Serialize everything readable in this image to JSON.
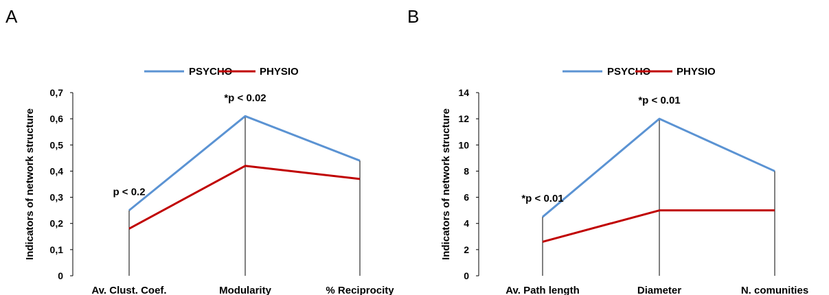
{
  "chart_data": [
    {
      "type": "line",
      "panel_label": "A",
      "categories": [
        "Av. Clust. Coef.",
        "Modularity",
        "% Reciprocity"
      ],
      "series": [
        {
          "name": "PSYCHO",
          "values": [
            0.25,
            0.61,
            0.44
          ],
          "color": "#5b93d3"
        },
        {
          "name": "PHYSIO",
          "values": [
            0.18,
            0.42,
            0.37
          ],
          "color": "#c00000"
        }
      ],
      "ylabel": "Indicators of network structure",
      "ylim": [
        0,
        0.7
      ],
      "yticks": [
        "0",
        "0,1",
        "0,2",
        "0,3",
        "0,4",
        "0,5",
        "0,6",
        "0,7"
      ],
      "annotations": [
        {
          "category_index": 0,
          "text": "p < 0.2"
        },
        {
          "category_index": 1,
          "text": "*p < 0.02"
        }
      ],
      "grid": false,
      "legend_position": "top"
    },
    {
      "type": "line",
      "panel_label": "B",
      "categories": [
        "Av. Path length",
        "Diameter",
        "N. comunities"
      ],
      "series": [
        {
          "name": "PSYCHO",
          "values": [
            4.5,
            12,
            8
          ],
          "color": "#5b93d3"
        },
        {
          "name": "PHYSIO",
          "values": [
            2.6,
            5,
            5
          ],
          "color": "#c00000"
        }
      ],
      "ylabel": "Indicators of network structure",
      "ylim": [
        0,
        14
      ],
      "yticks": [
        "0",
        "2",
        "4",
        "6",
        "8",
        "10",
        "12",
        "14"
      ],
      "annotations": [
        {
          "category_index": 0,
          "text": "*p < 0.01"
        },
        {
          "category_index": 1,
          "text": "*p < 0.01"
        }
      ],
      "grid": false,
      "legend_position": "top"
    }
  ]
}
